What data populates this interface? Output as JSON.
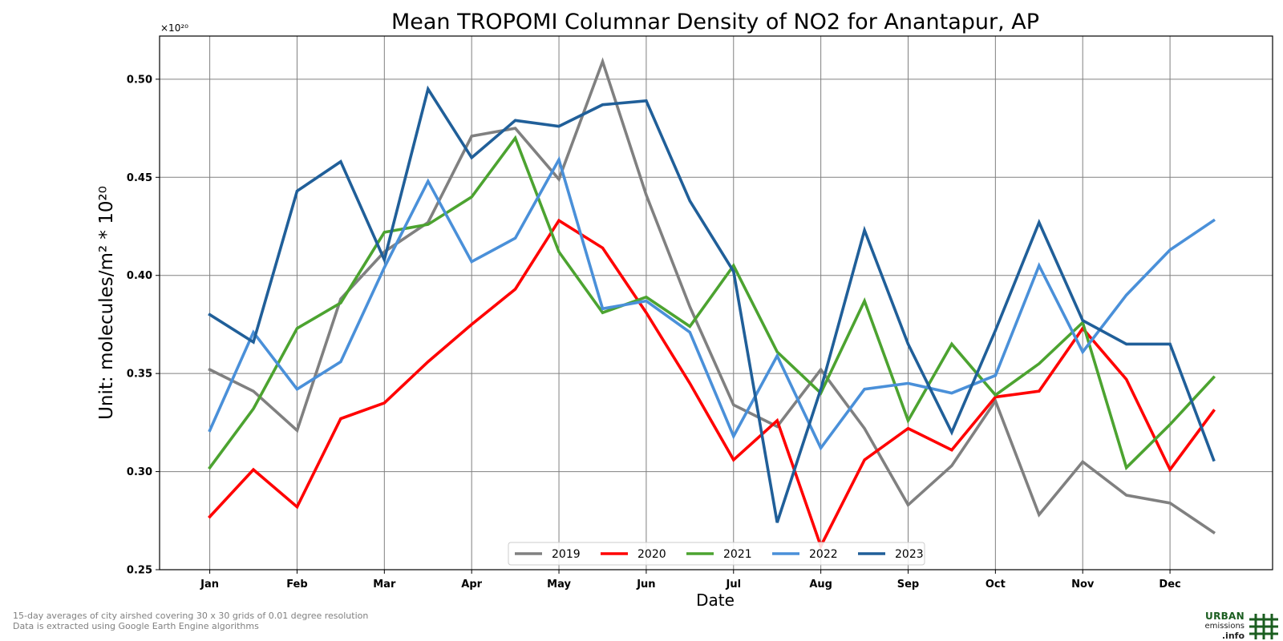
{
  "chart_data": {
    "type": "line",
    "title": "Mean TROPOMI Columnar Density of NO2 for Anantapur, AP",
    "xlabel": "Date",
    "ylabel": "Unit: molecules/m² * 10²⁰",
    "y_multiplier": "×10²⁰",
    "x_tick_labels": [
      "Jan",
      "Feb",
      "Mar",
      "Apr",
      "May",
      "Jun",
      "Jul",
      "Aug",
      "Sep",
      "Oct",
      "Nov",
      "Dec"
    ],
    "y_ticks": [
      0.25,
      0.3,
      0.35,
      0.4,
      0.45,
      0.5
    ],
    "y_tick_labels": [
      "0.25",
      "0.30",
      "0.35",
      "0.40",
      "0.45",
      "0.50"
    ],
    "ylim": [
      0.25,
      0.522
    ],
    "xlim": [
      -0.575,
      12.175
    ],
    "grid": true,
    "legend_position": "bottom-center",
    "x": [
      0,
      0.5,
      1,
      1.5,
      2,
      2.5,
      3,
      3.5,
      4,
      4.5,
      5,
      5.5,
      6,
      6.5,
      7,
      7.5,
      8,
      8.5,
      9,
      9.5,
      10,
      10.5,
      11,
      11.5
    ],
    "series": [
      {
        "name": "2019",
        "color": "#808080",
        "values": [
          0.352,
          0.341,
          0.321,
          0.388,
          0.412,
          0.427,
          0.471,
          0.475,
          0.449,
          0.509,
          0.441,
          0.384,
          0.334,
          0.323,
          0.352,
          0.322,
          0.283,
          0.303,
          0.336,
          0.278,
          0.305,
          0.288,
          0.284,
          0.269
        ]
      },
      {
        "name": "2020",
        "color": "#ff0000",
        "values": [
          0.277,
          0.301,
          0.282,
          0.327,
          0.335,
          0.356,
          0.375,
          0.393,
          0.428,
          0.414,
          0.381,
          0.345,
          0.306,
          0.326,
          0.262,
          0.306,
          0.322,
          0.311,
          0.338,
          0.341,
          0.373,
          0.347,
          0.301,
          0.331
        ]
      },
      {
        "name": "2021",
        "color": "#4ca330",
        "values": [
          0.302,
          0.332,
          0.373,
          0.386,
          0.422,
          0.426,
          0.44,
          0.47,
          0.412,
          0.381,
          0.389,
          0.374,
          0.405,
          0.361,
          0.34,
          0.387,
          0.326,
          0.365,
          0.339,
          0.355,
          0.376,
          0.302,
          0.324,
          0.348
        ]
      },
      {
        "name": "2022",
        "color": "#4a90d9",
        "values": [
          0.321,
          0.371,
          0.342,
          0.356,
          0.404,
          0.448,
          0.407,
          0.419,
          0.459,
          0.383,
          0.387,
          0.371,
          0.318,
          0.359,
          0.312,
          0.342,
          0.345,
          0.34,
          0.349,
          0.405,
          0.361,
          0.39,
          0.413,
          0.428
        ]
      },
      {
        "name": "2023",
        "color": "#205f99",
        "values": [
          0.38,
          0.366,
          0.443,
          0.458,
          0.408,
          0.495,
          0.46,
          0.479,
          0.476,
          0.487,
          0.489,
          0.438,
          0.402,
          0.274,
          0.342,
          0.423,
          0.365,
          0.32,
          0.372,
          0.427,
          0.377,
          0.365,
          0.365,
          0.306
        ]
      }
    ]
  },
  "footnotes": [
    "15-day averages of city airshed covering 30 x 30 grids of 0.01 degree resolution",
    "Data is extracted using Google Earth Engine algorithms"
  ],
  "logo": {
    "line1": "URBAN",
    "line2": "emissions",
    "line3": ".info",
    "color": "#1b5e20"
  }
}
